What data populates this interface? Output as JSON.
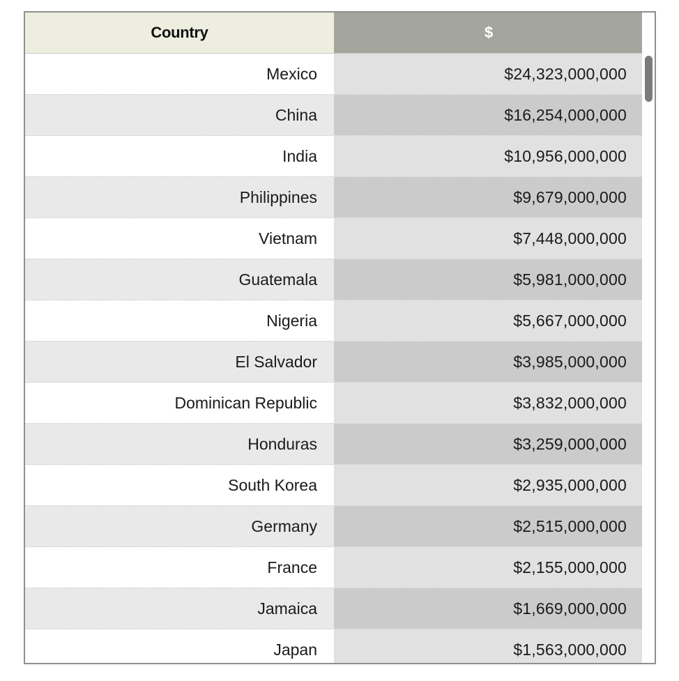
{
  "table": {
    "headers": {
      "country": "Country",
      "value": "$"
    },
    "rows": [
      {
        "country": "Mexico",
        "value": "$24,323,000,000"
      },
      {
        "country": "China",
        "value": "$16,254,000,000"
      },
      {
        "country": "India",
        "value": "$10,956,000,000"
      },
      {
        "country": "Philippines",
        "value": "$9,679,000,000"
      },
      {
        "country": "Vietnam",
        "value": "$7,448,000,000"
      },
      {
        "country": "Guatemala",
        "value": "$5,981,000,000"
      },
      {
        "country": "Nigeria",
        "value": "$5,667,000,000"
      },
      {
        "country": "El Salvador",
        "value": "$3,985,000,000"
      },
      {
        "country": "Dominican Republic",
        "value": "$3,832,000,000"
      },
      {
        "country": "Honduras",
        "value": "$3,259,000,000"
      },
      {
        "country": "South Korea",
        "value": "$2,935,000,000"
      },
      {
        "country": "Germany",
        "value": "$2,515,000,000"
      },
      {
        "country": "France",
        "value": "$2,155,000,000"
      },
      {
        "country": "Jamaica",
        "value": "$1,669,000,000"
      },
      {
        "country": "Japan",
        "value": "$1,563,000,000"
      }
    ]
  },
  "colors": {
    "header_country_bg": "#eeeee0",
    "header_value_bg": "#a4a59c",
    "row_light_bg": "#ffffff",
    "row_dark_bg": "#e9e9e9",
    "value_light_bg": "#e1e1e1",
    "value_dark_bg": "#cbcbcb",
    "scrollbar_thumb": "#7b7b7b"
  }
}
